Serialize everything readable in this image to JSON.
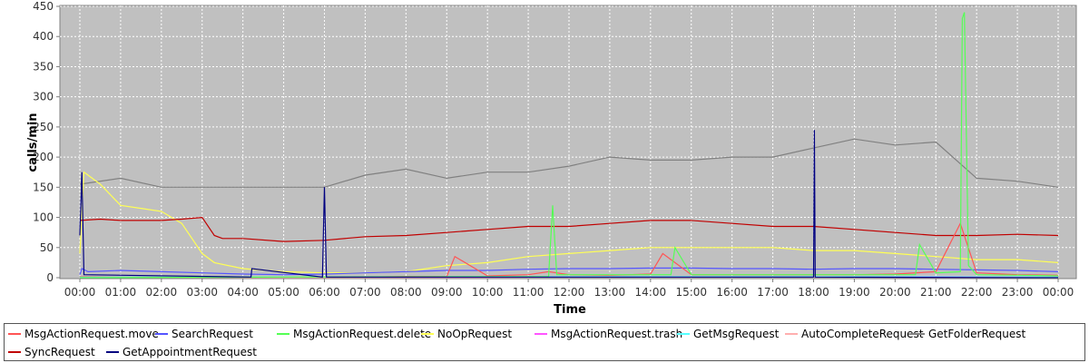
{
  "chart_data": {
    "type": "line",
    "title": "",
    "xlabel": "Time",
    "ylabel": "calls/min",
    "ylim": [
      0,
      450
    ],
    "yticks": [
      0,
      50,
      100,
      150,
      200,
      250,
      300,
      350,
      400,
      450
    ],
    "xlim": [
      0,
      24
    ],
    "xticks": [
      "00:00",
      "01:00",
      "02:00",
      "03:00",
      "04:00",
      "05:00",
      "06:00",
      "07:00",
      "08:00",
      "09:00",
      "10:00",
      "11:00",
      "12:00",
      "13:00",
      "14:00",
      "15:00",
      "16:00",
      "17:00",
      "18:00",
      "19:00",
      "20:00",
      "21:00",
      "22:00",
      "23:00",
      "00:00"
    ],
    "grid": true,
    "background": "#c0c0c0",
    "legend_position": "bottom",
    "x_unit": "hours",
    "series": [
      {
        "name": "MsgActionRequest.move",
        "color": "#ff5555",
        "x": [
          0,
          1,
          2,
          3,
          4,
          5,
          6,
          7,
          8,
          9,
          9.2,
          10,
          11,
          11.5,
          12,
          13,
          14,
          14.3,
          15,
          16,
          17,
          18,
          19,
          20,
          21,
          21.3,
          21.6,
          22,
          23,
          24
        ],
        "y": [
          2,
          1,
          1,
          1,
          0,
          0,
          0,
          1,
          2,
          2,
          35,
          3,
          5,
          10,
          5,
          4,
          6,
          40,
          5,
          5,
          5,
          5,
          5,
          6,
          10,
          50,
          90,
          8,
          5,
          4
        ]
      },
      {
        "name": "SearchRequest",
        "color": "#5555ff",
        "x": [
          0,
          0.05,
          0.2,
          1,
          2,
          3,
          4,
          5,
          6,
          7,
          8,
          9,
          10,
          11,
          12,
          13,
          14,
          15,
          16,
          17,
          18,
          19,
          20,
          21,
          22,
          23,
          24
        ],
        "y": [
          5,
          15,
          10,
          12,
          10,
          8,
          6,
          5,
          6,
          8,
          10,
          12,
          12,
          14,
          15,
          15,
          16,
          16,
          15,
          15,
          14,
          15,
          15,
          14,
          13,
          12,
          10
        ]
      },
      {
        "name": "MsgActionRequest.delete",
        "color": "#55ff55",
        "x": [
          0,
          5,
          11.5,
          11.6,
          11.7,
          12,
          14.5,
          14.6,
          15,
          20.5,
          20.6,
          21,
          21.6,
          21.65,
          21.7,
          21.8,
          22,
          23,
          24
        ],
        "y": [
          0,
          1,
          2,
          120,
          5,
          5,
          5,
          50,
          5,
          5,
          55,
          8,
          10,
          430,
          440,
          20,
          5,
          4,
          3
        ]
      },
      {
        "name": "NoOpRequest",
        "color": "#ffff55",
        "x": [
          0,
          0.1,
          0.5,
          1,
          1.5,
          2,
          2.5,
          3,
          3.3,
          4,
          5,
          6,
          7,
          8,
          9,
          10,
          11,
          12,
          13,
          14,
          15,
          16,
          17,
          18,
          19,
          20,
          21,
          22,
          23,
          24
        ],
        "y": [
          40,
          175,
          155,
          120,
          115,
          110,
          90,
          40,
          25,
          15,
          10,
          8,
          8,
          10,
          20,
          25,
          35,
          40,
          45,
          50,
          50,
          50,
          50,
          45,
          45,
          40,
          35,
          30,
          30,
          25
        ]
      },
      {
        "name": "MsgActionRequest.trash",
        "color": "#ff55ff",
        "x": [
          0,
          6,
          12,
          18,
          21,
          24
        ],
        "y": [
          0,
          0,
          1,
          1,
          2,
          1
        ]
      },
      {
        "name": "GetMsgRequest",
        "color": "#55ffff",
        "x": [
          0,
          6,
          12,
          18,
          24
        ],
        "y": [
          1,
          1,
          2,
          2,
          1
        ]
      },
      {
        "name": "AutoCompleteRequest",
        "color": "#ffafaf",
        "x": [
          0,
          6,
          12,
          18,
          24
        ],
        "y": [
          0,
          0,
          1,
          1,
          0
        ]
      },
      {
        "name": "GetFolderRequest",
        "color": "#808080",
        "x": [
          0,
          1,
          2,
          3,
          4,
          5,
          6,
          7,
          8,
          9,
          10,
          11,
          12,
          13,
          14,
          15,
          16,
          17,
          18,
          19,
          20,
          21,
          22,
          23,
          24
        ],
        "y": [
          155,
          165,
          150,
          150,
          150,
          150,
          150,
          170,
          180,
          165,
          175,
          175,
          185,
          200,
          195,
          195,
          200,
          200,
          215,
          230,
          220,
          225,
          165,
          160,
          150
        ]
      },
      {
        "name": "SyncRequest",
        "color": "#c00000",
        "x": [
          0,
          0.5,
          1,
          1.5,
          2,
          2.5,
          3,
          3.3,
          3.5,
          4,
          5,
          6,
          7,
          8,
          9,
          10,
          11,
          12,
          13,
          14,
          15,
          16,
          17,
          18,
          19,
          20,
          21,
          22,
          23,
          24
        ],
        "y": [
          95,
          97,
          95,
          95,
          95,
          97,
          100,
          70,
          65,
          65,
          60,
          62,
          68,
          70,
          75,
          80,
          85,
          85,
          90,
          95,
          95,
          90,
          85,
          85,
          80,
          75,
          70,
          70,
          72,
          70
        ]
      },
      {
        "name": "GetAppointmentRequest",
        "color": "#000080",
        "x": [
          0,
          0.05,
          0.1,
          4.2,
          4.22,
          5.95,
          6,
          6.05,
          18,
          18.02,
          18.04,
          24
        ],
        "y": [
          70,
          175,
          5,
          1,
          15,
          1,
          150,
          1,
          1,
          245,
          1,
          0
        ]
      }
    ]
  }
}
